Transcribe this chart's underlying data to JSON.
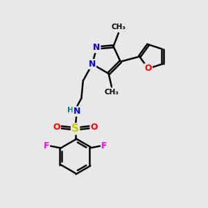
{
  "bg_color": "#e8e8e8",
  "bond_color": "#000000",
  "bond_width": 1.8,
  "atom_colors": {
    "N": "#0000ff",
    "O": "#ff0000",
    "S": "#cccc00",
    "F": "#ff00ff",
    "H": "#008080",
    "C": "#000000"
  },
  "figsize": [
    3.0,
    3.0
  ],
  "dpi": 100
}
